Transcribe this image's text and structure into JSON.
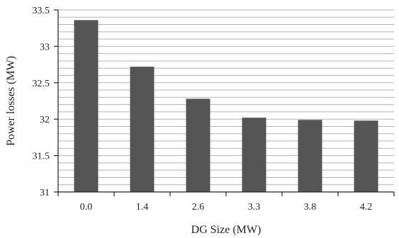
{
  "chart_data": {
    "type": "bar",
    "categories": [
      "0.0",
      "1.4",
      "2.6",
      "3.3",
      "3.8",
      "4.2"
    ],
    "values": [
      33.36,
      32.72,
      32.28,
      32.02,
      31.99,
      31.98
    ],
    "xlabel": "DG Size (MW)",
    "ylabel": "Power losses (MW)",
    "ylim": [
      31,
      33.5
    ],
    "yticks": [
      "31",
      "31.5",
      "32",
      "32.5",
      "33",
      "33.5"
    ],
    "grid": true,
    "bar_color": "#555555",
    "grid_color": "#b3b3b3"
  }
}
